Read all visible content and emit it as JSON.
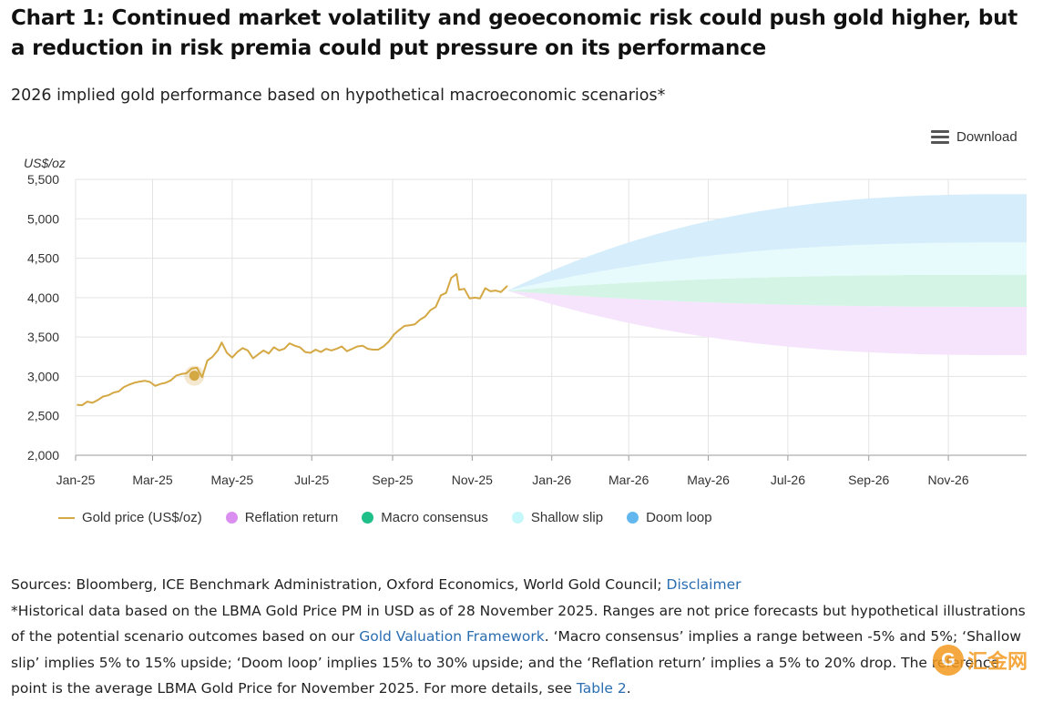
{
  "header": {
    "title": "Chart 1: Continued market volatility and geoeconomic risk could push gold higher, but a reduction in risk premia could put pressure on its performance",
    "subtitle": "2026 implied gold performance based on hypothetical macroeconomic scenarios*"
  },
  "toolbar": {
    "download_label": "Download",
    "download_icon": "hamburger-menu-icon"
  },
  "chart_data": {
    "type": "line",
    "ylabel": "US$/oz",
    "ylim": [
      2000,
      5500
    ],
    "yticks": [
      2000,
      2500,
      3000,
      3500,
      4000,
      4500,
      5000,
      5500
    ],
    "xlim": [
      "2025-01-01",
      "2026-12-31"
    ],
    "xticks": [
      {
        "date": "2025-01-01",
        "label": "Jan-25"
      },
      {
        "date": "2025-03-01",
        "label": "Mar-25"
      },
      {
        "date": "2025-05-01",
        "label": "May-25"
      },
      {
        "date": "2025-07-01",
        "label": "Jul-25"
      },
      {
        "date": "2025-09-01",
        "label": "Sep-25"
      },
      {
        "date": "2025-11-01",
        "label": "Nov-25"
      },
      {
        "date": "2026-01-01",
        "label": "Jan-26"
      },
      {
        "date": "2026-03-01",
        "label": "Mar-26"
      },
      {
        "date": "2026-05-01",
        "label": "May-26"
      },
      {
        "date": "2026-07-01",
        "label": "Jul-26"
      },
      {
        "date": "2026-09-01",
        "label": "Sep-26"
      },
      {
        "date": "2026-11-01",
        "label": "Nov-26"
      }
    ],
    "grid": true,
    "legend_position": "bottom-left",
    "series": [
      {
        "name": "Gold price (US$/oz)",
        "kind": "line",
        "color": "#d4a843",
        "points": [
          [
            "2025-01-02",
            2640
          ],
          [
            "2025-01-06",
            2635
          ],
          [
            "2025-01-10",
            2680
          ],
          [
            "2025-01-14",
            2665
          ],
          [
            "2025-01-18",
            2700
          ],
          [
            "2025-01-22",
            2745
          ],
          [
            "2025-01-26",
            2760
          ],
          [
            "2025-01-30",
            2795
          ],
          [
            "2025-02-03",
            2810
          ],
          [
            "2025-02-07",
            2865
          ],
          [
            "2025-02-11",
            2895
          ],
          [
            "2025-02-15",
            2920
          ],
          [
            "2025-02-19",
            2935
          ],
          [
            "2025-02-23",
            2945
          ],
          [
            "2025-02-27",
            2930
          ],
          [
            "2025-03-03",
            2880
          ],
          [
            "2025-03-07",
            2905
          ],
          [
            "2025-03-11",
            2920
          ],
          [
            "2025-03-15",
            2950
          ],
          [
            "2025-03-19",
            3010
          ],
          [
            "2025-03-23",
            3030
          ],
          [
            "2025-03-27",
            3040
          ],
          [
            "2025-03-31",
            3100
          ],
          [
            "2025-04-04",
            3110
          ],
          [
            "2025-04-08",
            2990
          ],
          [
            "2025-04-12",
            3200
          ],
          [
            "2025-04-16",
            3250
          ],
          [
            "2025-04-20",
            3330
          ],
          [
            "2025-04-23",
            3430
          ],
          [
            "2025-04-27",
            3300
          ],
          [
            "2025-05-01",
            3240
          ],
          [
            "2025-05-05",
            3310
          ],
          [
            "2025-05-09",
            3360
          ],
          [
            "2025-05-13",
            3330
          ],
          [
            "2025-05-17",
            3230
          ],
          [
            "2025-05-21",
            3280
          ],
          [
            "2025-05-25",
            3330
          ],
          [
            "2025-05-29",
            3290
          ],
          [
            "2025-06-02",
            3370
          ],
          [
            "2025-06-06",
            3330
          ],
          [
            "2025-06-10",
            3350
          ],
          [
            "2025-06-14",
            3420
          ],
          [
            "2025-06-18",
            3390
          ],
          [
            "2025-06-22",
            3370
          ],
          [
            "2025-06-26",
            3310
          ],
          [
            "2025-06-30",
            3300
          ],
          [
            "2025-07-04",
            3340
          ],
          [
            "2025-07-08",
            3310
          ],
          [
            "2025-07-12",
            3350
          ],
          [
            "2025-07-16",
            3330
          ],
          [
            "2025-07-20",
            3350
          ],
          [
            "2025-07-24",
            3380
          ],
          [
            "2025-07-28",
            3320
          ],
          [
            "2025-08-01",
            3350
          ],
          [
            "2025-08-05",
            3380
          ],
          [
            "2025-08-09",
            3390
          ],
          [
            "2025-08-13",
            3350
          ],
          [
            "2025-08-17",
            3340
          ],
          [
            "2025-08-21",
            3340
          ],
          [
            "2025-08-25",
            3380
          ],
          [
            "2025-08-29",
            3440
          ],
          [
            "2025-09-02",
            3530
          ],
          [
            "2025-09-06",
            3590
          ],
          [
            "2025-09-10",
            3640
          ],
          [
            "2025-09-14",
            3650
          ],
          [
            "2025-09-18",
            3660
          ],
          [
            "2025-09-22",
            3720
          ],
          [
            "2025-09-26",
            3760
          ],
          [
            "2025-09-30",
            3840
          ],
          [
            "2025-10-04",
            3880
          ],
          [
            "2025-10-08",
            4030
          ],
          [
            "2025-10-12",
            4060
          ],
          [
            "2025-10-16",
            4250
          ],
          [
            "2025-10-20",
            4300
          ],
          [
            "2025-10-22",
            4100
          ],
          [
            "2025-10-26",
            4110
          ],
          [
            "2025-10-30",
            3990
          ],
          [
            "2025-11-03",
            4000
          ],
          [
            "2025-11-07",
            3990
          ],
          [
            "2025-11-11",
            4120
          ],
          [
            "2025-11-15",
            4080
          ],
          [
            "2025-11-19",
            4090
          ],
          [
            "2025-11-23",
            4070
          ],
          [
            "2025-11-28",
            4150
          ]
        ]
      }
    ],
    "scenarios": [
      {
        "name": "Reflation return",
        "color": "#d98ef0",
        "fill": "#f5e4fc",
        "low_pct": -20,
        "high_pct": -5
      },
      {
        "name": "Macro consensus",
        "color": "#1fbf8a",
        "fill": "#d4f5e6",
        "low_pct": -5,
        "high_pct": 5
      },
      {
        "name": "Shallow slip",
        "color": "#b8f5f8",
        "fill": "#e7fbfc",
        "low_pct": 5,
        "high_pct": 15
      },
      {
        "name": "Doom loop",
        "color": "#62b8ee",
        "fill": "#d6eefb",
        "low_pct": 15,
        "high_pct": 30
      }
    ],
    "reference_point": {
      "date": "2025-11-28",
      "value": 4087
    },
    "highlight_point": {
      "date": "2025-04-02",
      "value": 3010
    },
    "scenario_end": "2026-12-31"
  },
  "footnote": {
    "sources_text": "Sources: Bloomberg, ICE Benchmark Administration, Oxford Economics, World Gold Council; ",
    "disclaimer_link": "Disclaimer",
    "note_part1": "*Historical data based on the LBMA Gold Price PM in USD as of 28 November 2025. Ranges are not price forecasts but hypothetical illustrations of the potential scenario outcomes based on our ",
    "framework_link": "Gold Valuation Framework",
    "note_part2": ". ‘Macro consensus’ implies a range between -5% and 5%; ‘Shallow slip’ implies 5% to 15% upside; ‘Doom loop’ implies 15% to 30% upside; and the ‘Reflation return’ implies a 5% to 20% drop. The reference point is the average LBMA Gold Price for November 2025. For more details, see ",
    "table_link": "Table 2",
    "note_end": "."
  },
  "watermark": {
    "text": "汇金网",
    "icon": "huijin-logo-icon"
  }
}
